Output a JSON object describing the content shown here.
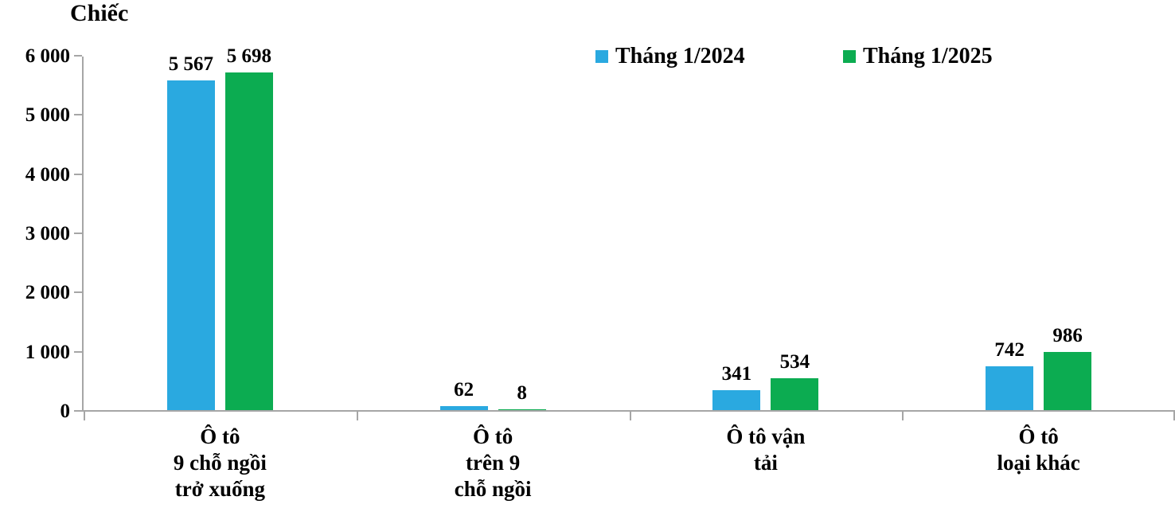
{
  "chart_data": {
    "type": "bar",
    "unit_label": "Chiếc",
    "categories": [
      "Ô tô\n9 chỗ ngồi\ntrở xuống",
      "Ô tô\ntrên 9\nchỗ ngồi",
      "Ô tô vận\ntải",
      "Ô tô\nloại khác"
    ],
    "series": [
      {
        "name": "Tháng 1/2024",
        "color": "#2aa9e0",
        "values": [
          5567,
          62,
          341,
          742
        ],
        "value_labels": [
          "5 567",
          "62",
          "341",
          "742"
        ]
      },
      {
        "name": "Tháng 1/2025",
        "color": "#0cac51",
        "values": [
          5698,
          8,
          534,
          986
        ],
        "value_labels": [
          "5 698",
          "8",
          "534",
          "986"
        ]
      }
    ],
    "ylim": [
      0,
      6000
    ],
    "y_ticks": [
      0,
      1000,
      2000,
      3000,
      4000,
      5000,
      6000
    ],
    "y_tick_labels": [
      "0",
      "1 000",
      "2 000",
      "3 000",
      "4 000",
      "5 000",
      "6 000"
    ],
    "xlabel": "",
    "ylabel": "Chiếc",
    "legend_position": "top-center",
    "grid": false,
    "axis_color": "#a6a6a6",
    "text_color": "#000000"
  }
}
